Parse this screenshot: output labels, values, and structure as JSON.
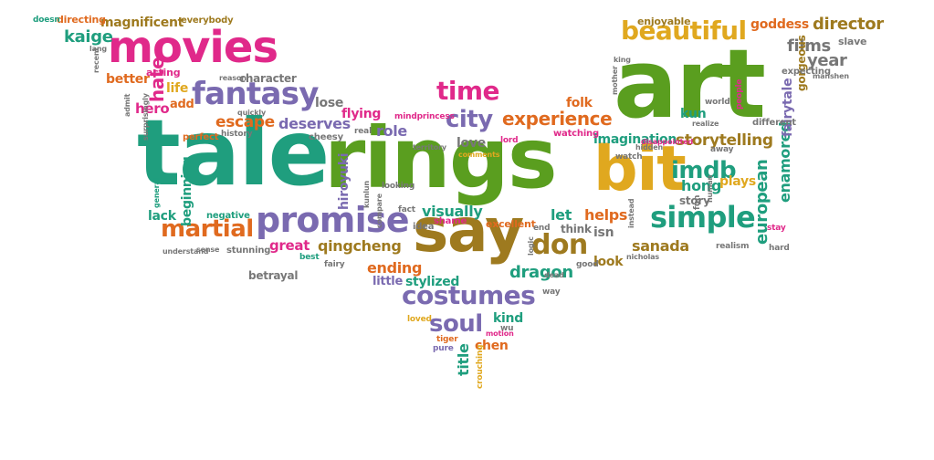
{
  "palette": {
    "magenta": "#e0298a",
    "green": "#5a9e1f",
    "teal": "#1f9e7e",
    "purple": "#7a6ab0",
    "orange": "#e06a1f",
    "gold": "#e0a81f",
    "brown": "#9e7a1f",
    "gray": "#777777"
  },
  "words": [
    {
      "text": "tale",
      "color": "teal"
    },
    {
      "text": "rings",
      "color": "green"
    },
    {
      "text": "art",
      "color": "green"
    },
    {
      "text": "say",
      "color": "brown"
    },
    {
      "text": "bit",
      "color": "gold"
    },
    {
      "text": "movies",
      "color": "magenta"
    },
    {
      "text": "promise",
      "color": "purple"
    },
    {
      "text": "fantasy",
      "color": "purple"
    },
    {
      "text": "beautiful",
      "color": "gold"
    },
    {
      "text": "costumes",
      "color": "purple"
    },
    {
      "text": "simple",
      "color": "teal"
    },
    {
      "text": "martial",
      "color": "orange"
    },
    {
      "text": "don",
      "color": "brown"
    },
    {
      "text": "time",
      "color": "magenta"
    },
    {
      "text": "city",
      "color": "purple"
    },
    {
      "text": "experience",
      "color": "orange"
    },
    {
      "text": "imdb",
      "color": "teal"
    },
    {
      "text": "soul",
      "color": "purple"
    },
    {
      "text": "kaige",
      "color": "teal"
    },
    {
      "text": "director",
      "color": "brown"
    },
    {
      "text": "films",
      "color": "gray"
    },
    {
      "text": "year",
      "color": "gray"
    },
    {
      "text": "storytelling",
      "color": "brown"
    },
    {
      "text": "imagination",
      "color": "teal"
    },
    {
      "text": "deserves",
      "color": "purple"
    },
    {
      "text": "escape",
      "color": "orange"
    },
    {
      "text": "magnificent",
      "color": "brown"
    },
    {
      "text": "goddess",
      "color": "orange"
    },
    {
      "text": "betrayal",
      "color": "gray"
    },
    {
      "text": "qingcheng",
      "color": "brown"
    },
    {
      "text": "dragon",
      "color": "teal"
    },
    {
      "text": "visually",
      "color": "teal"
    },
    {
      "text": "ending",
      "color": "orange"
    },
    {
      "text": "better",
      "color": "orange"
    },
    {
      "text": "role",
      "color": "purple"
    },
    {
      "text": "helps",
      "color": "orange"
    },
    {
      "text": "sanada",
      "color": "brown"
    },
    {
      "text": "great",
      "color": "magenta"
    },
    {
      "text": "lose",
      "color": "gray"
    },
    {
      "text": "flying",
      "color": "magenta"
    },
    {
      "text": "hong",
      "color": "teal"
    },
    {
      "text": "plays",
      "color": "gold"
    },
    {
      "text": "kun",
      "color": "teal"
    },
    {
      "text": "story",
      "color": "gray"
    },
    {
      "text": "let",
      "color": "teal"
    },
    {
      "text": "look",
      "color": "brown"
    },
    {
      "text": "think",
      "color": "gray"
    },
    {
      "text": "isn",
      "color": "gray"
    },
    {
      "text": "kind",
      "color": "teal"
    },
    {
      "text": "chen",
      "color": "orange"
    },
    {
      "text": "stylized",
      "color": "teal"
    },
    {
      "text": "little",
      "color": "purple"
    },
    {
      "text": "love",
      "color": "gray"
    },
    {
      "text": "folk",
      "color": "orange"
    },
    {
      "text": "enjoyable",
      "color": "brown"
    },
    {
      "text": "character",
      "color": "gray"
    },
    {
      "text": "life",
      "color": "gold"
    },
    {
      "text": "add",
      "color": "orange"
    },
    {
      "text": "hero",
      "color": "magenta"
    },
    {
      "text": "lack",
      "color": "teal"
    },
    {
      "text": "directing",
      "color": "orange"
    },
    {
      "text": "everybody",
      "color": "brown"
    },
    {
      "text": "acting",
      "color": "magenta"
    },
    {
      "text": "excellent",
      "color": "orange"
    },
    {
      "text": "enamored",
      "color": "teal"
    },
    {
      "text": "european",
      "color": "teal"
    },
    {
      "text": "hate",
      "color": "magenta"
    },
    {
      "text": "hiroyuki",
      "color": "purple"
    },
    {
      "text": "fairytale",
      "color": "purple"
    },
    {
      "text": "title",
      "color": "teal"
    },
    {
      "text": "beginning",
      "color": "teal"
    },
    {
      "text": "gorgeous",
      "color": "brown"
    },
    {
      "text": "slave",
      "color": "gray"
    },
    {
      "text": "expecting",
      "color": "gray"
    },
    {
      "text": "cheesy",
      "color": "gray"
    },
    {
      "text": "watching",
      "color": "magenta"
    },
    {
      "text": "different",
      "color": "gray"
    },
    {
      "text": "perfect",
      "color": "orange"
    },
    {
      "text": "history",
      "color": "gray"
    },
    {
      "text": "negative",
      "color": "teal"
    },
    {
      "text": "stunning",
      "color": "gray"
    },
    {
      "text": "best",
      "color": "teal"
    },
    {
      "text": "fairy",
      "color": "gray"
    },
    {
      "text": "idea",
      "color": "gray"
    },
    {
      "text": "shame",
      "color": "magenta"
    },
    {
      "text": "nicholas",
      "color": "gray"
    },
    {
      "text": "realism",
      "color": "gray"
    },
    {
      "text": "stay",
      "color": "magenta"
    },
    {
      "text": "hard",
      "color": "gray"
    },
    {
      "text": "watch",
      "color": "gray"
    },
    {
      "text": "way",
      "color": "gray"
    },
    {
      "text": "good",
      "color": "gray"
    },
    {
      "text": "end",
      "color": "gray"
    },
    {
      "text": "looking",
      "color": "gray"
    },
    {
      "text": "fact",
      "color": "gray"
    },
    {
      "text": "loved",
      "color": "gold"
    },
    {
      "text": "tiger",
      "color": "orange"
    },
    {
      "text": "pure",
      "color": "purple"
    },
    {
      "text": "crouching",
      "color": "gold"
    },
    {
      "text": "motion",
      "color": "magenta"
    },
    {
      "text": "lord",
      "color": "magenta"
    },
    {
      "text": "real",
      "color": "gray"
    },
    {
      "text": "world",
      "color": "gray"
    },
    {
      "text": "people",
      "color": "magenta"
    },
    {
      "text": "away",
      "color": "gray"
    },
    {
      "text": "hidden",
      "color": "gray"
    },
    {
      "text": "realize",
      "color": "gray"
    },
    {
      "text": "manshen",
      "color": "gray"
    },
    {
      "text": "mindprincess",
      "color": "magenta"
    },
    {
      "text": "territory",
      "color": "gray"
    },
    {
      "text": "comments",
      "color": "gold"
    },
    {
      "text": "reason",
      "color": "gray"
    },
    {
      "text": "disappointed",
      "color": "magenta"
    },
    {
      "text": "understand",
      "color": "gray"
    },
    {
      "text": "sense",
      "color": "gray"
    },
    {
      "text": "general",
      "color": "teal"
    },
    {
      "text": "surprisingly",
      "color": "gray"
    },
    {
      "text": "admit",
      "color": "gray"
    },
    {
      "text": "recent",
      "color": "gray"
    },
    {
      "text": "lang",
      "color": "gray"
    },
    {
      "text": "doesn",
      "color": "teal"
    },
    {
      "text": "king",
      "color": "gray"
    },
    {
      "text": "mother",
      "color": "gray"
    },
    {
      "text": "fun",
      "color": "gray"
    },
    {
      "text": "instead",
      "color": "gray"
    },
    {
      "text": "quickly",
      "color": "gray"
    },
    {
      "text": "compare",
      "color": "gray"
    },
    {
      "text": "wu",
      "color": "gray"
    },
    {
      "text": "logic",
      "color": "gray"
    },
    {
      "text": "dead",
      "color": "gray"
    },
    {
      "text": "human",
      "color": "gray"
    },
    {
      "text": "kunlun",
      "color": "gray"
    }
  ]
}
